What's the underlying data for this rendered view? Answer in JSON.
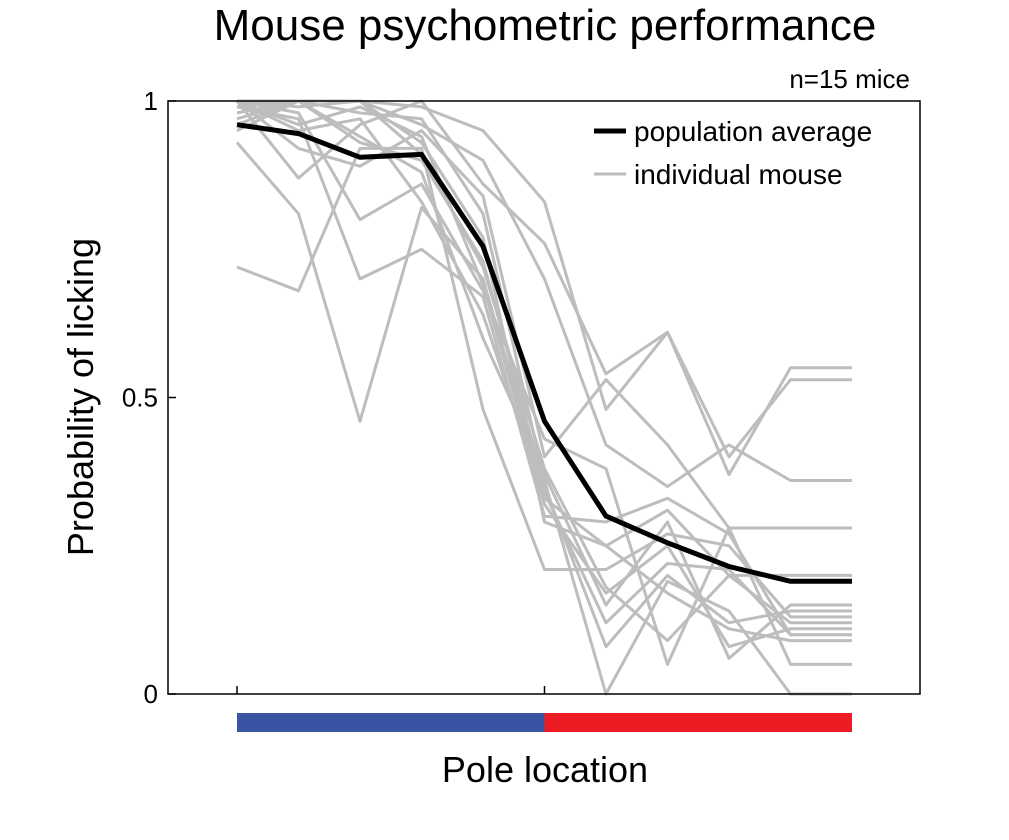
{
  "chart_data": {
    "type": "line",
    "title": "Mouse psychometric performance",
    "subtitle": "n=15 mice",
    "xlabel": "Pole location",
    "ylabel": "Probability of licking",
    "x": [
      1,
      2,
      3,
      4,
      5,
      6,
      7,
      8,
      9,
      10,
      11
    ],
    "xlim": [
      1,
      12
    ],
    "ylim": [
      0,
      1
    ],
    "yticks": [
      0,
      0.5,
      1
    ],
    "ytick_labels": [
      "0",
      "0.5",
      "1"
    ],
    "xtick_positions": [
      1,
      6
    ],
    "grid": false,
    "legend": {
      "placement": "top-right",
      "entries": [
        {
          "label": "population average",
          "color": "#000000"
        },
        {
          "label": "individual mouse",
          "color": "#bdbdbd"
        }
      ]
    },
    "category_bar": [
      {
        "from": 1,
        "to": 6,
        "color": "#3a54a4"
      },
      {
        "from": 6,
        "to": 11,
        "color": "#ed1c24"
      }
    ],
    "average": {
      "color": "#000000",
      "values": [
        0.96,
        0.945,
        0.905,
        0.91,
        0.755,
        0.46,
        0.3,
        0.255,
        0.215,
        0.19,
        0.19
      ]
    },
    "individuals": {
      "color": "#bdbdbd",
      "values": [
        [
          1.0,
          0.87,
          0.96,
          1.0,
          0.86,
          0.76,
          0.54,
          0.61,
          0.37,
          0.55,
          0.55
        ],
        [
          1.0,
          1.0,
          1.0,
          0.96,
          0.9,
          0.7,
          0.42,
          0.35,
          0.42,
          0.36,
          0.36
        ],
        [
          0.98,
          1.0,
          1.0,
          0.99,
          0.95,
          0.83,
          0.48,
          0.61,
          0.4,
          0.53,
          0.53
        ],
        [
          1.0,
          0.92,
          0.89,
          0.95,
          0.84,
          0.4,
          0.53,
          0.42,
          0.28,
          0.28,
          0.28
        ],
        [
          0.96,
          1.0,
          1.0,
          0.93,
          0.77,
          0.29,
          0.25,
          0.31,
          0.2,
          0.2,
          0.2
        ],
        [
          0.72,
          0.68,
          0.92,
          0.92,
          0.48,
          0.21,
          0.21,
          0.27,
          0.25,
          0.13,
          0.13
        ],
        [
          0.93,
          0.81,
          0.46,
          0.82,
          0.7,
          0.34,
          0.12,
          0.22,
          0.21,
          0.1,
          0.1
        ],
        [
          0.99,
          0.97,
          0.7,
          0.75,
          0.67,
          0.3,
          0.29,
          0.33,
          0.27,
          0.1,
          0.1
        ],
        [
          1.0,
          0.98,
          0.8,
          0.86,
          0.68,
          0.43,
          0.38,
          0.05,
          0.28,
          0.05,
          0.05
        ],
        [
          0.97,
          1.0,
          0.93,
          0.9,
          0.73,
          0.35,
          0.08,
          0.2,
          0.12,
          0.14,
          0.14
        ],
        [
          1.0,
          0.96,
          0.99,
          0.94,
          0.69,
          0.32,
          0.17,
          0.25,
          0.08,
          0.11,
          0.11
        ],
        [
          0.95,
          1.0,
          0.94,
          0.88,
          0.6,
          0.37,
          0.15,
          0.29,
          0.06,
          0.15,
          0.15
        ],
        [
          1.0,
          0.95,
          0.97,
          0.83,
          0.64,
          0.33,
          0.25,
          0.17,
          0.11,
          0.09,
          0.09
        ],
        [
          0.99,
          1.0,
          0.98,
          0.97,
          0.81,
          0.36,
          0.0,
          0.19,
          0.14,
          0.0,
          0.0
        ],
        [
          1.0,
          0.99,
          1.0,
          0.91,
          0.72,
          0.38,
          0.18,
          0.09,
          0.2,
          0.12,
          0.12
        ]
      ]
    }
  }
}
